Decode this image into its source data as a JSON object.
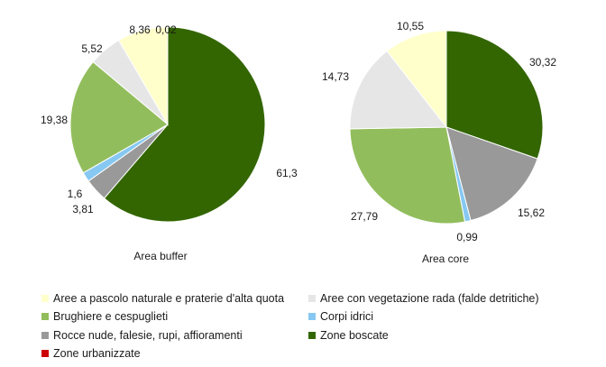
{
  "chart_data": [
    {
      "type": "pie",
      "title": "Area buffer",
      "categories": [
        "Aree a pascolo naturale e praterie d'alta quota",
        "Aree con vegetazione rada (falde detritiche)",
        "Brughiere e cespuglieti",
        "Corpi idrici",
        "Rocce nude, falesie, rupi, affioramenti",
        "Zone boscate",
        "Zone urbanizzate"
      ],
      "values": [
        8.36,
        5.52,
        19.38,
        1.6,
        3.81,
        61.3,
        0.02
      ],
      "value_labels": [
        "8,36",
        "5,52",
        "19,38",
        "1,6",
        "3,81",
        "61,3",
        "0,02"
      ]
    },
    {
      "type": "pie",
      "title": "Area core",
      "categories": [
        "Aree a pascolo naturale e praterie d'alta quota",
        "Aree con vegetazione rada (falde detritiche)",
        "Brughiere e cespuglieti",
        "Corpi idrici",
        "Rocce nude, falesie, rupi, affioramenti",
        "Zone boscate",
        "Zone urbanizzate"
      ],
      "values": [
        10.55,
        14.73,
        27.79,
        0.99,
        15.62,
        30.32,
        0
      ],
      "value_labels": [
        "10,55",
        "14,73",
        "27,79",
        "0,99",
        "15,62",
        "30,32",
        ""
      ]
    }
  ],
  "legend": [
    {
      "label": "Aree a pascolo naturale e praterie d'alta quota",
      "color": "#ffffcc"
    },
    {
      "label": "Aree con vegetazione rada (falde detritiche)",
      "color": "#e6e6e6"
    },
    {
      "label": "Brughiere e cespuglieti",
      "color": "#92bd5c"
    },
    {
      "label": "Corpi idrici",
      "color": "#86c8f2"
    },
    {
      "label": "Rocce nude, falesie, rupi, affioramenti",
      "color": "#999999"
    },
    {
      "label": "Zone boscate",
      "color": "#336600"
    },
    {
      "label": "Zone urbanizzate",
      "color": "#cc0000"
    }
  ],
  "colors": {
    "Aree a pascolo naturale e praterie d'alta quota": "#ffffcc",
    "Aree con vegetazione rada (falde detritiche)": "#e6e6e6",
    "Brughiere e cespuglieti": "#92bd5c",
    "Corpi idrici": "#86c8f2",
    "Rocce nude, falesie, rupi, affioramenti": "#999999",
    "Zone boscate": "#336600",
    "Zone urbanizzate": "#cc0000"
  }
}
